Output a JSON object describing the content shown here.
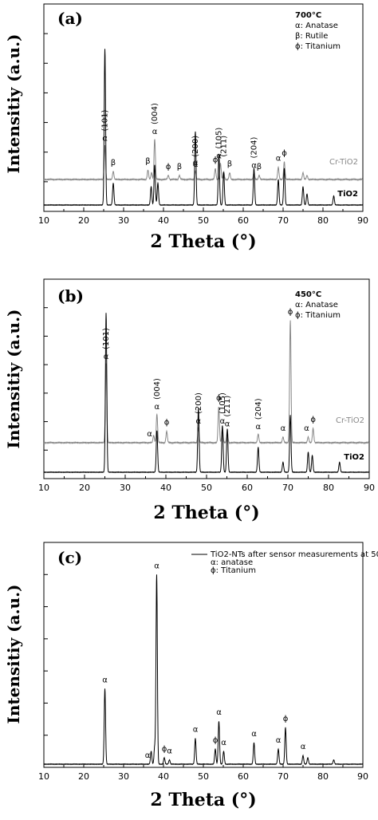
{
  "chart_data": [
    {
      "panel_label": "(a)",
      "type": "line",
      "xlabel": "2 Theta (°)",
      "ylabel": "Intensitiy (a.u.)",
      "xlim": [
        10,
        90
      ],
      "xticks": [
        10,
        20,
        30,
        40,
        50,
        60,
        70,
        80,
        90
      ],
      "legend": {
        "title": "700°C",
        "entries": [
          "α: Anatase",
          "β: Rutile",
          "ϕ: Titanium"
        ]
      },
      "series": [
        {
          "name": "Cr-TiO2",
          "color": "#888888",
          "peaks": [
            {
              "x": 25.3,
              "h": 0.25
            },
            {
              "x": 27.4,
              "h": 0.06
            },
            {
              "x": 36.1,
              "h": 0.07
            },
            {
              "x": 37.0,
              "h": 0.05
            },
            {
              "x": 37.8,
              "h": 0.3
            },
            {
              "x": 41.2,
              "h": 0.03
            },
            {
              "x": 44.0,
              "h": 0.03
            },
            {
              "x": 48.0,
              "h": 0.06
            },
            {
              "x": 53.0,
              "h": 0.08
            },
            {
              "x": 54.3,
              "h": 0.12
            },
            {
              "x": 55.1,
              "h": 0.06
            },
            {
              "x": 56.6,
              "h": 0.05
            },
            {
              "x": 62.7,
              "h": 0.05
            },
            {
              "x": 64.0,
              "h": 0.03
            },
            {
              "x": 68.8,
              "h": 0.09
            },
            {
              "x": 70.3,
              "h": 0.13
            },
            {
              "x": 75.0,
              "h": 0.05
            },
            {
              "x": 76.0,
              "h": 0.03
            }
          ]
        },
        {
          "name": "TiO2",
          "color": "#000000",
          "peaks": [
            {
              "x": 25.3,
              "h": 0.85
            },
            {
              "x": 27.4,
              "h": 0.12
            },
            {
              "x": 36.9,
              "h": 0.1
            },
            {
              "x": 37.8,
              "h": 0.22
            },
            {
              "x": 38.6,
              "h": 0.12
            },
            {
              "x": 48.0,
              "h": 0.4
            },
            {
              "x": 53.9,
              "h": 0.28
            },
            {
              "x": 55.1,
              "h": 0.18
            },
            {
              "x": 62.7,
              "h": 0.2
            },
            {
              "x": 68.8,
              "h": 0.14
            },
            {
              "x": 70.3,
              "h": 0.2
            },
            {
              "x": 75.0,
              "h": 0.1
            },
            {
              "x": 76.0,
              "h": 0.06
            },
            {
              "x": 82.7,
              "h": 0.05
            }
          ]
        }
      ],
      "annotations": [
        {
          "x": 25.3,
          "text": "(101)",
          "sub": "α"
        },
        {
          "x": 37.8,
          "text": "(004)",
          "sub": "α"
        },
        {
          "x": 48.0,
          "text": "(200)",
          "sub": "α"
        },
        {
          "x": 53.9,
          "text": "(105)",
          "sub": "α"
        },
        {
          "x": 55.1,
          "text": "(211)",
          "sub": ""
        },
        {
          "x": 62.7,
          "text": "(204)",
          "sub": "α"
        }
      ],
      "symbols": [
        {
          "x": 27.4,
          "s": "β"
        },
        {
          "x": 36.1,
          "s": "β"
        },
        {
          "x": 41.2,
          "s": "ϕ"
        },
        {
          "x": 44.0,
          "s": "β"
        },
        {
          "x": 48.0,
          "s": "α"
        },
        {
          "x": 53.0,
          "s": "ϕ"
        },
        {
          "x": 56.6,
          "s": "β"
        },
        {
          "x": 64.0,
          "s": "β"
        },
        {
          "x": 68.8,
          "s": "α"
        },
        {
          "x": 70.3,
          "s": "ϕ"
        }
      ]
    },
    {
      "panel_label": "(b)",
      "type": "line",
      "xlabel": "2 Theta (°)",
      "ylabel": "Intensitiy (a.u.)",
      "xlim": [
        10,
        90
      ],
      "xticks": [
        10,
        20,
        30,
        40,
        50,
        60,
        70,
        80,
        90
      ],
      "legend": {
        "title": "450°C",
        "entries": [
          "α: Anatase",
          "ϕ: Titanium"
        ]
      },
      "series": [
        {
          "name": "Cr-TiO2",
          "color": "#888888",
          "peaks": [
            {
              "x": 25.3,
              "h": 0.55
            },
            {
              "x": 37.0,
              "h": 0.05
            },
            {
              "x": 37.8,
              "h": 0.2
            },
            {
              "x": 40.2,
              "h": 0.08
            },
            {
              "x": 48.0,
              "h": 0.1
            },
            {
              "x": 53.0,
              "h": 0.25
            },
            {
              "x": 53.9,
              "h": 0.1
            },
            {
              "x": 55.1,
              "h": 0.08
            },
            {
              "x": 62.7,
              "h": 0.06
            },
            {
              "x": 68.8,
              "h": 0.04
            },
            {
              "x": 70.6,
              "h": 0.85
            },
            {
              "x": 75.0,
              "h": 0.04
            },
            {
              "x": 76.2,
              "h": 0.1
            }
          ]
        },
        {
          "name": "TiO2",
          "color": "#000000",
          "peaks": [
            {
              "x": 25.3,
              "h": 0.95
            },
            {
              "x": 37.8,
              "h": 0.25
            },
            {
              "x": 48.0,
              "h": 0.38
            },
            {
              "x": 53.9,
              "h": 0.28
            },
            {
              "x": 55.1,
              "h": 0.26
            },
            {
              "x": 62.7,
              "h": 0.15
            },
            {
              "x": 68.8,
              "h": 0.06
            },
            {
              "x": 70.6,
              "h": 0.34
            },
            {
              "x": 75.0,
              "h": 0.12
            },
            {
              "x": 76.0,
              "h": 0.1
            },
            {
              "x": 82.7,
              "h": 0.06
            }
          ]
        }
      ],
      "annotations": [
        {
          "x": 25.3,
          "text": "(101)",
          "sub": "α"
        },
        {
          "x": 37.8,
          "text": "(004)",
          "sub": "α"
        },
        {
          "x": 48.0,
          "text": "(200)",
          "sub": "α"
        },
        {
          "x": 53.9,
          "text": "(105)",
          "sub": "α"
        },
        {
          "x": 55.1,
          "text": "(211)",
          "sub": "α"
        },
        {
          "x": 62.7,
          "text": "(204)",
          "sub": "α"
        }
      ],
      "symbols": [
        {
          "x": 36.0,
          "s": "α"
        },
        {
          "x": 40.2,
          "s": "ϕ"
        },
        {
          "x": 53.0,
          "s": "ϕ"
        },
        {
          "x": 68.8,
          "s": "α"
        },
        {
          "x": 70.6,
          "s": "ϕ"
        },
        {
          "x": 74.6,
          "s": "α"
        },
        {
          "x": 76.2,
          "s": "ϕ"
        }
      ]
    },
    {
      "panel_label": "(c)",
      "type": "line",
      "xlabel": "2 Theta (°)",
      "ylabel": "Intensitiy (a.u.)",
      "xlim": [
        10,
        90
      ],
      "xticks": [
        10,
        20,
        30,
        40,
        50,
        60,
        70,
        80,
        90
      ],
      "legend": {
        "entries": [
          "TiO2-NTs after sensor measurements at 500°C",
          "α: anatase",
          "ϕ: Titanium"
        ]
      },
      "series": [
        {
          "name": "",
          "color": "#000000",
          "peaks": [
            {
              "x": 25.3,
              "h": 0.35
            },
            {
              "x": 36.9,
              "h": 0.06
            },
            {
              "x": 37.8,
              "h": 0.08
            },
            {
              "x": 38.3,
              "h": 0.88
            },
            {
              "x": 40.2,
              "h": 0.03
            },
            {
              "x": 41.5,
              "h": 0.02
            },
            {
              "x": 48.0,
              "h": 0.12
            },
            {
              "x": 53.0,
              "h": 0.07
            },
            {
              "x": 53.9,
              "h": 0.2
            },
            {
              "x": 55.1,
              "h": 0.06
            },
            {
              "x": 62.7,
              "h": 0.1
            },
            {
              "x": 68.8,
              "h": 0.07
            },
            {
              "x": 70.6,
              "h": 0.17
            },
            {
              "x": 75.0,
              "h": 0.04
            },
            {
              "x": 76.2,
              "h": 0.03
            },
            {
              "x": 82.7,
              "h": 0.02
            }
          ]
        }
      ],
      "symbols": [
        {
          "x": 25.3,
          "s": "α"
        },
        {
          "x": 36.0,
          "s": "α"
        },
        {
          "x": 38.3,
          "s": "α"
        },
        {
          "x": 40.2,
          "s": "ϕ"
        },
        {
          "x": 41.5,
          "s": "α"
        },
        {
          "x": 48.0,
          "s": "α"
        },
        {
          "x": 53.0,
          "s": "ϕ"
        },
        {
          "x": 53.9,
          "s": "α"
        },
        {
          "x": 55.1,
          "s": "α"
        },
        {
          "x": 62.7,
          "s": "α"
        },
        {
          "x": 68.8,
          "s": "α"
        },
        {
          "x": 70.6,
          "s": "ϕ"
        },
        {
          "x": 75.0,
          "s": "α"
        }
      ]
    }
  ]
}
